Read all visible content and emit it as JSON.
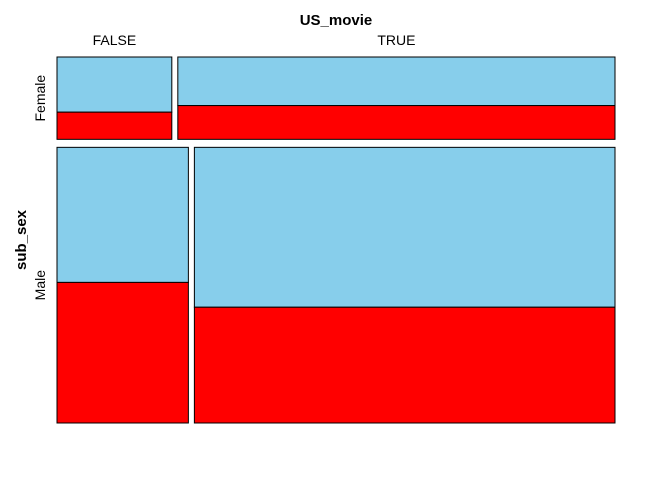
{
  "chart_data": {
    "type": "mosaic",
    "x_variable": "US_movie",
    "y_variable": "sub_sex",
    "x_categories": [
      "FALSE",
      "TRUE"
    ],
    "y_categories": [
      "Female",
      "Male"
    ],
    "cells": [
      {
        "y": "Female",
        "x": "FALSE",
        "x_share": 0.208,
        "red_share": 0.33
      },
      {
        "y": "Female",
        "x": "TRUE",
        "x_share": 0.792,
        "red_share": 0.41
      },
      {
        "y": "Male",
        "x": "FALSE",
        "x_share": 0.238,
        "red_share": 0.51
      },
      {
        "y": "Male",
        "x": "TRUE",
        "x_share": 0.762,
        "red_share": 0.42
      }
    ],
    "row_shares": {
      "Female": 0.23,
      "Male": 0.77
    },
    "fill_colors": {
      "top": "#87CEEB",
      "bottom": "#FF0000"
    }
  }
}
